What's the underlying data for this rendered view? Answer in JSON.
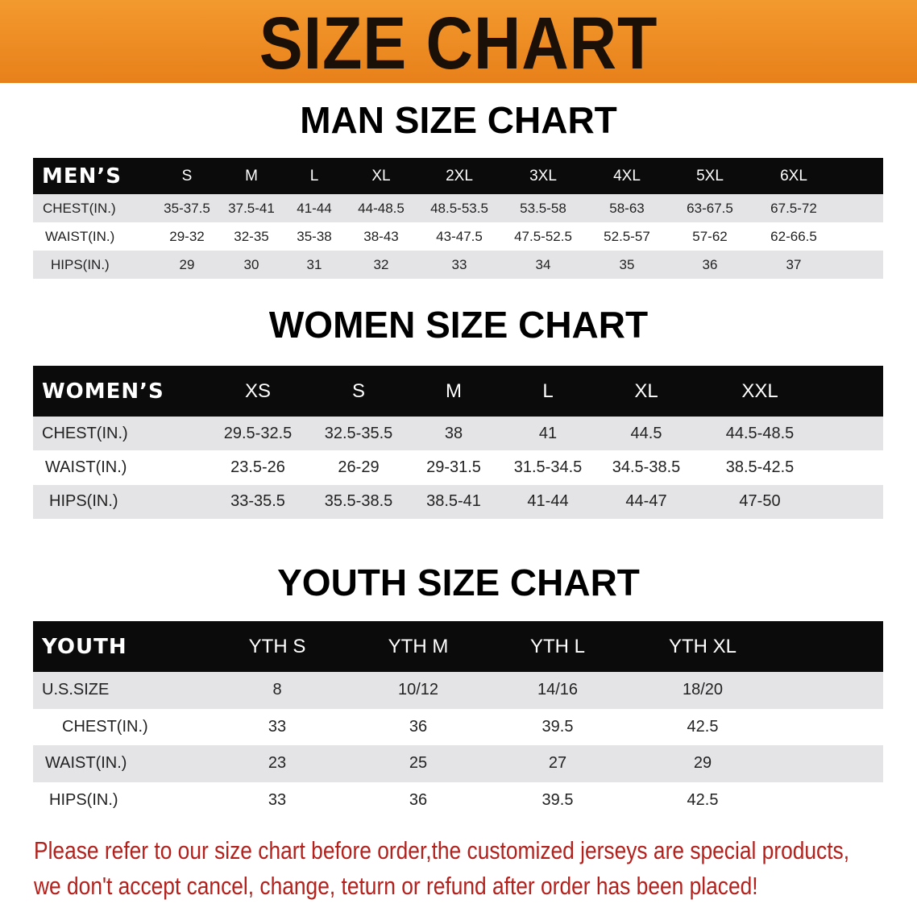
{
  "banner_title": "SIZE CHART",
  "colors": {
    "banner": "#ee8a22",
    "header": "#0b0b0b",
    "row_alt": "#e4e4e6",
    "note": "#b3211d"
  },
  "men": {
    "title": "MAN SIZE CHART",
    "header": [
      "MEN’S",
      "S",
      "M",
      "L",
      "XL",
      "2XL",
      "3XL",
      "4XL",
      "5XL",
      "6XL"
    ],
    "rows": [
      [
        "CHEST(IN.)",
        "35-37.5",
        "37.5-41",
        "41-44",
        "44-48.5",
        "48.5-53.5",
        "53.5-58",
        "58-63",
        "63-67.5",
        "67.5-72"
      ],
      [
        "WAIST(IN.)",
        "29-32",
        "32-35",
        "35-38",
        "38-43",
        "43-47.5",
        "47.5-52.5",
        "52.5-57",
        "57-62",
        "62-66.5"
      ],
      [
        "HIPS(IN.)",
        "29",
        "30",
        "31",
        "32",
        "33",
        "34",
        "35",
        "36",
        "37"
      ]
    ]
  },
  "women": {
    "title": "WOMEN SIZE CHART",
    "header": [
      "WOMEN’S",
      "XS",
      "S",
      "M",
      "L",
      "XL",
      "XXL"
    ],
    "rows": [
      [
        "CHEST(IN.)",
        "29.5-32.5",
        "32.5-35.5",
        "38",
        "41",
        "44.5",
        "44.5-48.5"
      ],
      [
        "WAIST(IN.)",
        "23.5-26",
        "26-29",
        "29-31.5",
        "31.5-34.5",
        "34.5-38.5",
        "38.5-42.5"
      ],
      [
        "HIPS(IN.)",
        "33-35.5",
        "35.5-38.5",
        "38.5-41",
        "41-44",
        "44-47",
        "47-50"
      ]
    ]
  },
  "youth": {
    "title": "YOUTH SIZE CHART",
    "header": [
      "YOUTH",
      "YTH S",
      "YTH M",
      "YTH L",
      "YTH XL"
    ],
    "rows": [
      [
        "U.S.SIZE",
        "8",
        "10/12",
        "14/16",
        "18/20"
      ],
      [
        "CHEST(IN.)",
        "33",
        "36",
        "39.5",
        "42.5"
      ],
      [
        "WAIST(IN.)",
        "23",
        "25",
        "27",
        "29"
      ],
      [
        "HIPS(IN.)",
        "33",
        "36",
        "39.5",
        "42.5"
      ]
    ]
  },
  "note": [
    "Please refer to our size chart before order,the customized jerseys are special products,",
    "we don't accept cancel, change, teturn or refund after order has been placed!"
  ]
}
